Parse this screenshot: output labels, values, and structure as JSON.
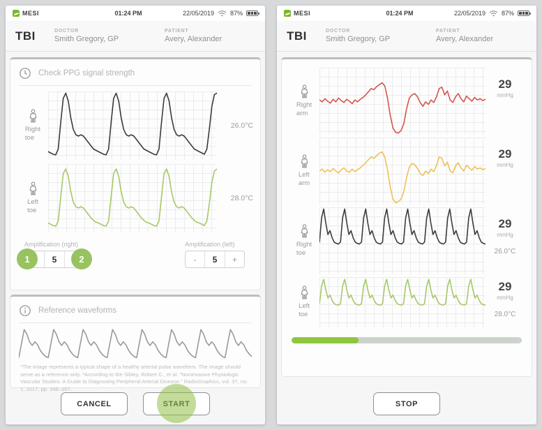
{
  "status_bar": {
    "brand": "MESI",
    "time": "01:24 PM",
    "date": "22/05/2019",
    "battery": "87%"
  },
  "header": {
    "app_title": "TBI",
    "doctor_label": "DOCTOR",
    "doctor_name": "Smith Gregory, GP",
    "patient_label": "PATIENT",
    "patient_name": "Avery, Alexander"
  },
  "left_screen": {
    "ppg_card": {
      "title": "Check PPG signal strength",
      "channels": [
        {
          "label1": "Right",
          "label2": "toe",
          "temperature": "26.0°C"
        },
        {
          "label1": "Left",
          "label2": "toe",
          "temperature": "28.0°C"
        }
      ],
      "amplification_right": {
        "label": "Amplification (right)",
        "minus": "-",
        "value": "5",
        "plus": "+"
      },
      "amplification_left": {
        "label": "Amplification (left)",
        "minus": "-",
        "value": "5",
        "plus": "+"
      },
      "callout_1": "1",
      "callout_2": "2"
    },
    "reference_card": {
      "title": "Reference waveforms",
      "footnote": "*The image represents a typical shape of a healthy arterial pulse waveform. The image should serve as a reference only. *According to the Sibley, Robert C., et al. \"Noninvasive Physiologic Vascular Studies: A Guide to Diagnosing Peripheral Arterial Disease.\" RadioGraphics, vol. 37, no. 1, 2017, pp. 346–357."
    },
    "cancel_label": "CANCEL",
    "start_label": "START"
  },
  "right_screen": {
    "channels": [
      {
        "label1": "Right",
        "label2": "arm",
        "pressure": "29",
        "unit": "mmHg",
        "temperature": ""
      },
      {
        "label1": "Left",
        "label2": "arm",
        "pressure": "29",
        "unit": "mmHg",
        "temperature": ""
      },
      {
        "label1": "Right",
        "label2": "toe",
        "pressure": "29",
        "unit": "mmHg",
        "temperature": "26.0°C"
      },
      {
        "label1": "Left",
        "label2": "toe",
        "pressure": "29",
        "unit": "mmHg",
        "temperature": "28.0°C"
      }
    ],
    "progress_percent": 29,
    "stop_label": "STOP"
  },
  "chart_data": {
    "type": "line",
    "series": {
      "ppg_right_toe": {
        "name": "Right toe PPG",
        "color": "#3b3b3b",
        "values": [
          10,
          8,
          6,
          5,
          14,
          55,
          92,
          100,
          88,
          62,
          44,
          36,
          34,
          36,
          34,
          29,
          24,
          19,
          14,
          12,
          10,
          8,
          6,
          5,
          14,
          55,
          92,
          100,
          88,
          62,
          44,
          36,
          34,
          36,
          34,
          29,
          24,
          19,
          14,
          12,
          10,
          8,
          6,
          5,
          14,
          55,
          92,
          100,
          88,
          62,
          44,
          36,
          34,
          36,
          34,
          29,
          24,
          19,
          14,
          12,
          10,
          8,
          6,
          14,
          45,
          80,
          98,
          100
        ]
      },
      "ppg_left_toe": {
        "name": "Left toe PPG",
        "color": "#a5c868",
        "values": [
          12,
          10,
          8,
          7,
          15,
          52,
          88,
          95,
          84,
          60,
          44,
          37,
          35,
          37,
          35,
          30,
          25,
          20,
          16,
          13,
          12,
          10,
          8,
          7,
          15,
          52,
          88,
          95,
          84,
          60,
          44,
          37,
          35,
          37,
          35,
          30,
          25,
          20,
          16,
          13,
          12,
          10,
          8,
          7,
          15,
          52,
          88,
          95,
          84,
          60,
          44,
          37,
          35,
          37,
          35,
          30,
          25,
          20,
          16,
          13,
          12,
          10,
          8,
          15,
          42,
          75,
          92,
          95
        ]
      },
      "reference": {
        "name": "Reference arterial pulse",
        "color": "#9a9a9a",
        "values": [
          8,
          55,
          100,
          85,
          60,
          48,
          60,
          50,
          32,
          20,
          12,
          8,
          55,
          100,
          85,
          60,
          48,
          60,
          50,
          32,
          20,
          12,
          8,
          55,
          100,
          85,
          60,
          48,
          60,
          50,
          32,
          20,
          12,
          8,
          55,
          100,
          85,
          60,
          48,
          60,
          50,
          32,
          20,
          12,
          8,
          55,
          100,
          85,
          60,
          48,
          60,
          50,
          32,
          20,
          12,
          8,
          55,
          100,
          85,
          60,
          48,
          60,
          50,
          32,
          20,
          12,
          8,
          55,
          100,
          85,
          60,
          48,
          60,
          50,
          32,
          20,
          12,
          8,
          55,
          100,
          85,
          60,
          48,
          60,
          50,
          32,
          20,
          12
        ]
      },
      "meas_right_arm": {
        "name": "Right arm",
        "color": "#d6544c",
        "values": [
          52,
          49,
          54,
          50,
          47,
          53,
          49,
          55,
          51,
          48,
          53,
          50,
          46,
          52,
          49,
          53,
          56,
          60,
          65,
          70,
          68,
          73,
          76,
          79,
          74,
          55,
          28,
          8,
          1,
          0,
          4,
          15,
          38,
          55,
          60,
          62,
          57,
          48,
          42,
          49,
          45,
          52,
          48,
          57,
          70,
          72,
          60,
          66,
          52,
          48,
          57,
          62,
          54,
          49,
          58,
          54,
          50,
          56,
          52,
          54,
          51,
          53
        ]
      },
      "meas_left_arm": {
        "name": "Left arm",
        "color": "#eec157",
        "values": [
          50,
          53,
          48,
          52,
          49,
          54,
          50,
          47,
          52,
          55,
          50,
          48,
          53,
          49,
          52,
          55,
          59,
          63,
          68,
          72,
          70,
          74,
          78,
          80,
          72,
          52,
          25,
          6,
          0,
          2,
          6,
          18,
          40,
          56,
          62,
          60,
          54,
          46,
          43,
          50,
          46,
          53,
          49,
          59,
          72,
          70,
          58,
          64,
          50,
          47,
          58,
          63,
          55,
          50,
          59,
          55,
          51,
          57,
          53,
          55,
          52,
          54
        ]
      },
      "meas_right_toe": {
        "name": "Right toe",
        "color": "#3b3b3b",
        "values": [
          48,
          86,
          100,
          78,
          60,
          66,
          55,
          48,
          46,
          45,
          48,
          86,
          100,
          78,
          60,
          66,
          55,
          48,
          46,
          45,
          48,
          86,
          100,
          78,
          60,
          66,
          55,
          48,
          46,
          45,
          48,
          86,
          100,
          78,
          60,
          66,
          55,
          48,
          46,
          45,
          48,
          86,
          100,
          78,
          60,
          66,
          55,
          48,
          46,
          45,
          48,
          86,
          100,
          78,
          60,
          66,
          55,
          48,
          46,
          45,
          48,
          86,
          100,
          78,
          60,
          66,
          55,
          48,
          46,
          45,
          48,
          86,
          100,
          78,
          60,
          66,
          55,
          48,
          46,
          45
        ]
      },
      "meas_left_toe": {
        "name": "Left toe",
        "color": "#a5c868",
        "values": [
          47,
          84,
          98,
          76,
          59,
          65,
          54,
          47,
          45,
          44,
          47,
          84,
          98,
          76,
          59,
          65,
          54,
          47,
          45,
          44,
          47,
          84,
          98,
          76,
          59,
          65,
          54,
          47,
          45,
          44,
          47,
          84,
          98,
          76,
          59,
          65,
          54,
          47,
          45,
          44,
          47,
          84,
          98,
          76,
          59,
          65,
          54,
          47,
          45,
          44,
          47,
          84,
          98,
          76,
          59,
          65,
          54,
          47,
          45,
          44,
          47,
          84,
          98,
          76,
          59,
          65,
          54,
          47,
          45,
          44,
          47,
          84,
          98,
          76,
          59,
          65,
          54,
          47,
          45,
          44
        ]
      }
    }
  }
}
